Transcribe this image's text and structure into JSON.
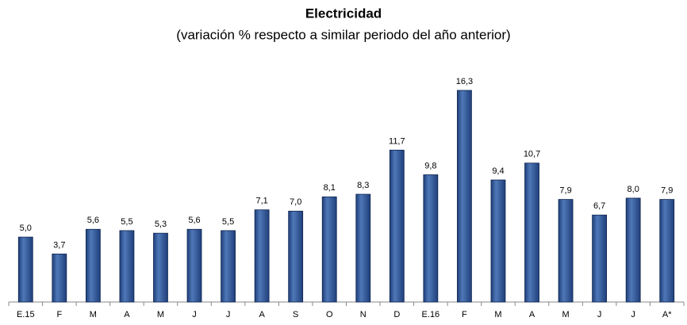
{
  "chart_data": {
    "type": "bar",
    "title": "Electricidad",
    "subtitle": "(variación % respecto a similar periodo del año anterior)",
    "categories": [
      "E.15",
      "F",
      "M",
      "A",
      "M",
      "J",
      "J",
      "A",
      "S",
      "O",
      "N",
      "D",
      "E.16",
      "F",
      "M",
      "A",
      "M",
      "J",
      "J",
      "A*"
    ],
    "values": [
      5.0,
      3.7,
      5.6,
      5.5,
      5.3,
      5.6,
      5.5,
      7.1,
      7.0,
      8.1,
      8.3,
      11.7,
      9.8,
      16.3,
      9.4,
      10.7,
      7.9,
      6.7,
      8.0,
      7.9
    ],
    "value_labels": [
      "5,0",
      "3,7",
      "5,6",
      "5,5",
      "5,3",
      "5,6",
      "5,5",
      "7,1",
      "7,0",
      "8,1",
      "8,3",
      "11,7",
      "9,8",
      "16,3",
      "9,4",
      "10,7",
      "7,9",
      "6,7",
      "8,0",
      "7,9"
    ],
    "color": "#1f3f7a"
  }
}
